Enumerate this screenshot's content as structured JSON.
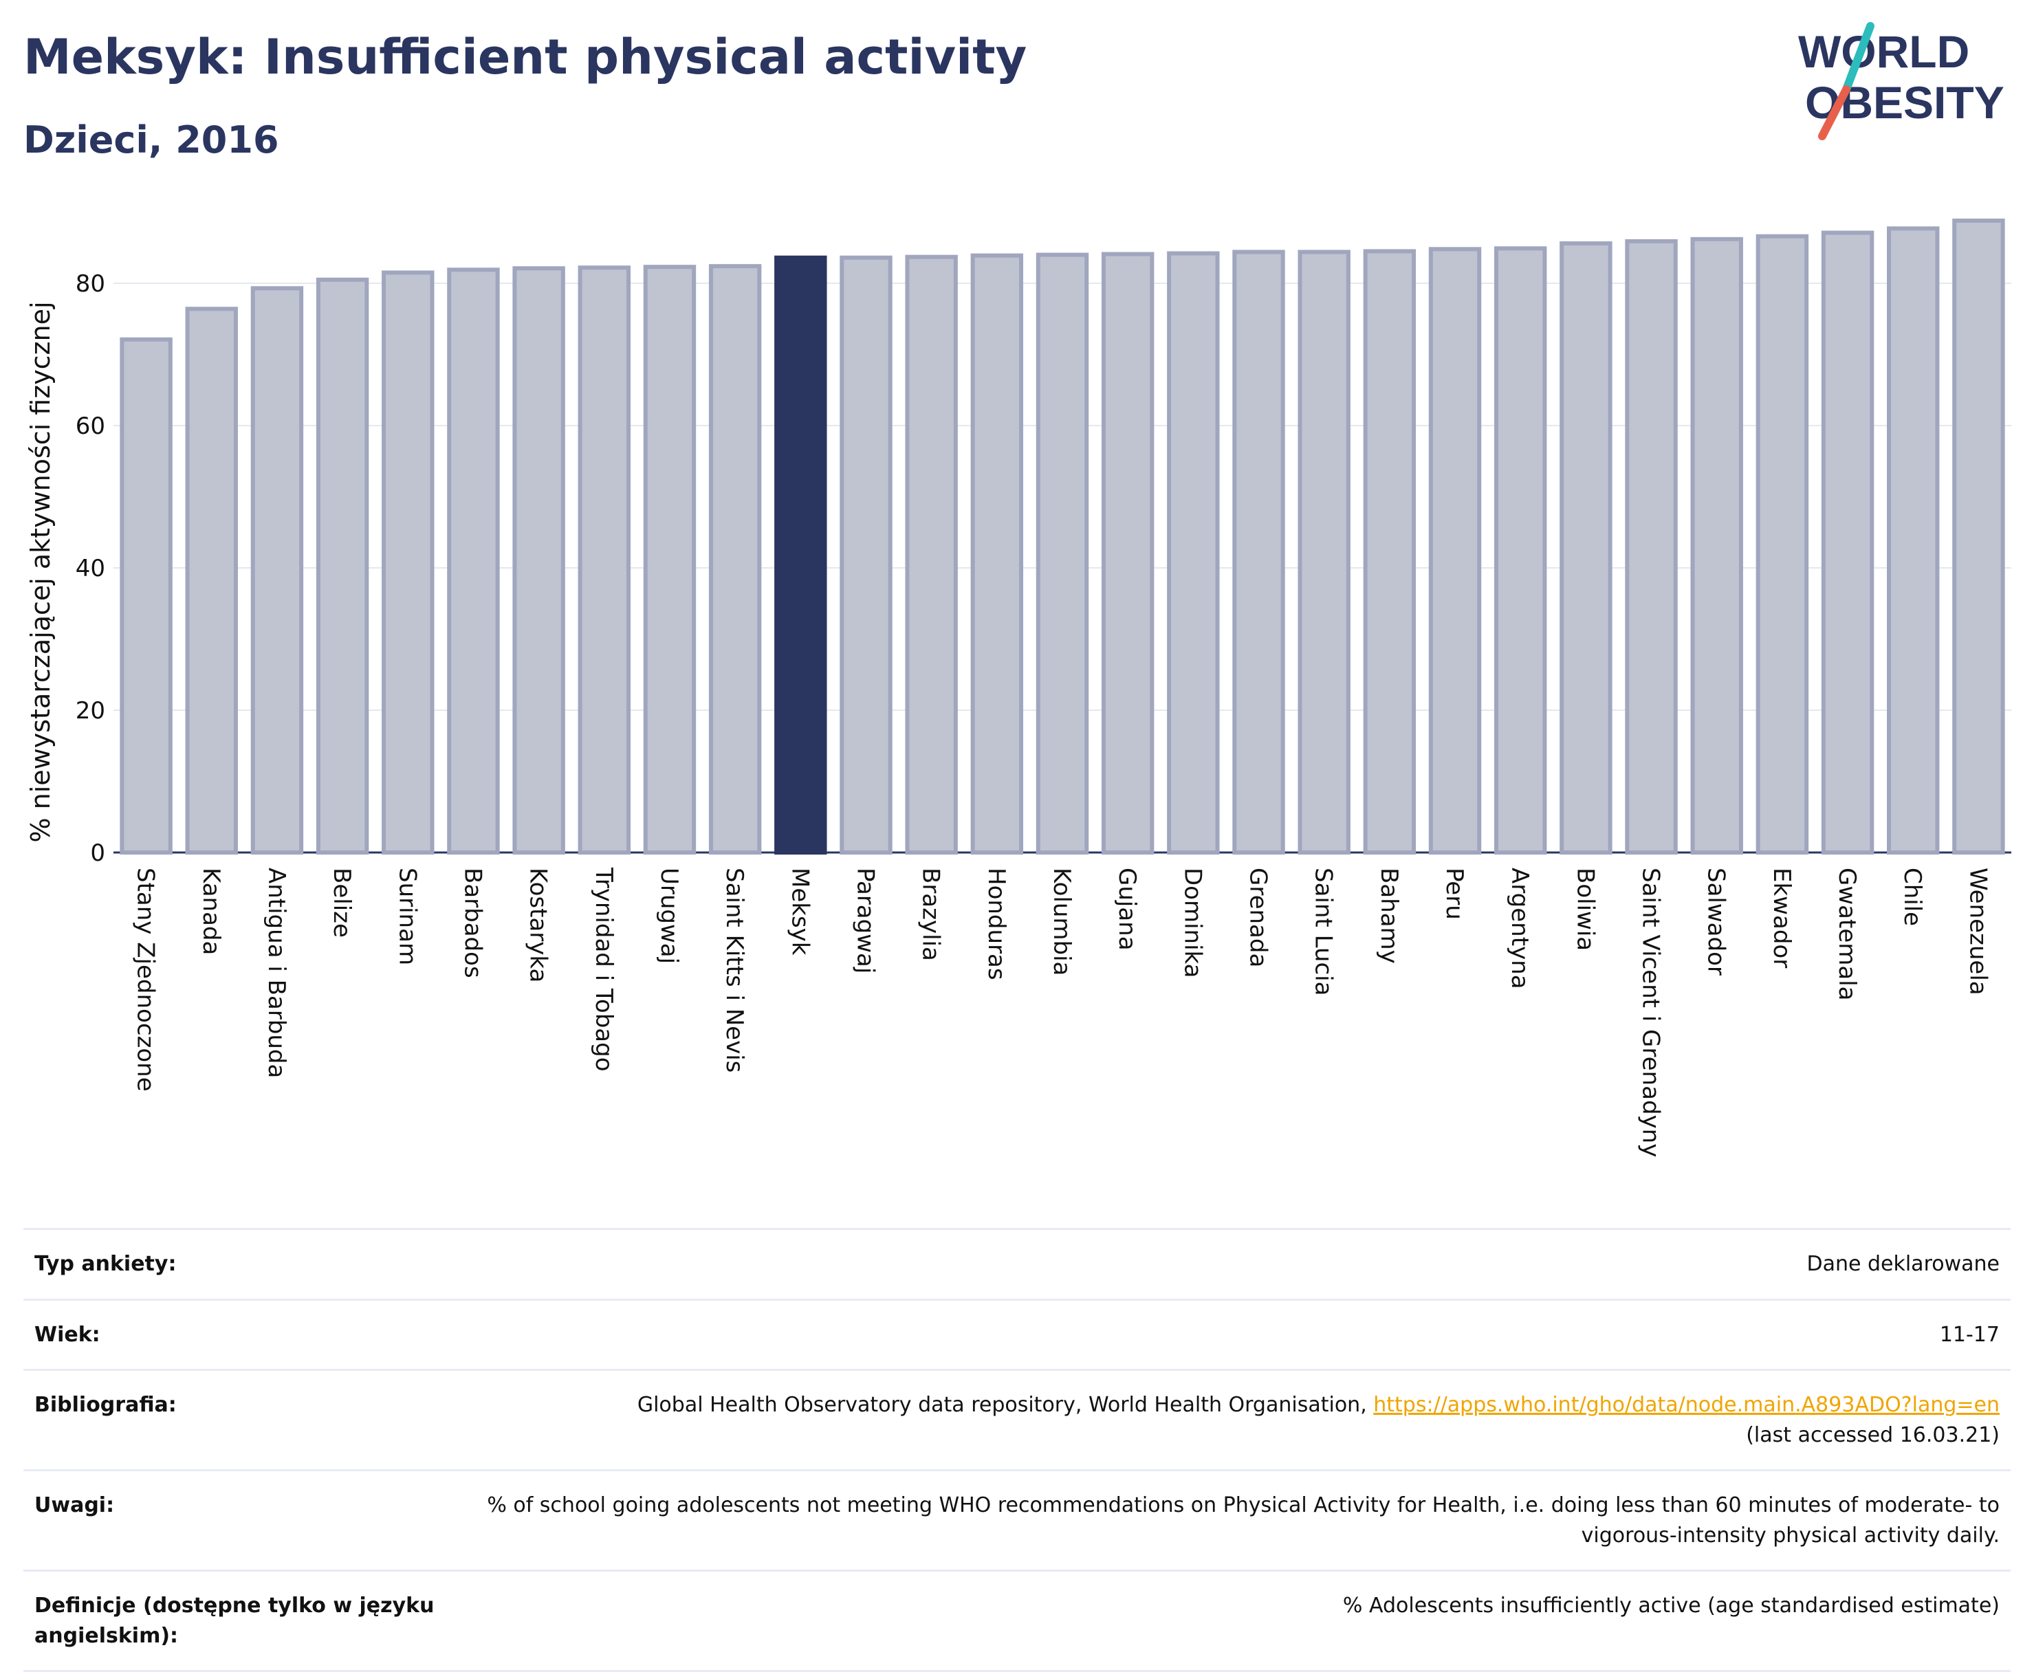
{
  "header": {
    "title": "Meksyk: Insufficient physical activity",
    "subtitle": "Dzieci, 2016"
  },
  "logo": {
    "line1": "WORLD",
    "line2": "OBESITY"
  },
  "colors": {
    "highlight": "#2a3560",
    "bar_fill": "#c0c3d0",
    "bar_stroke": "#a0a6be",
    "logo_slash_top": "#2cbcbc",
    "logo_slash_bottom": "#e8604c",
    "link": "#f0a500"
  },
  "chart_data": {
    "type": "bar",
    "ylabel": "% niewystarczającej aktywności fizycznej",
    "ylim": [
      0,
      90
    ],
    "yticks": [
      0,
      20,
      40,
      60,
      80
    ],
    "grid": true,
    "highlight": "Meksyk",
    "categories": [
      "Stany Zjednoczone",
      "Kanada",
      "Antigua i Barbuda",
      "Belize",
      "Surinam",
      "Barbados",
      "Kostaryka",
      "Trynidad i Tobago",
      "Urugwaj",
      "Saint Kitts i Nevis",
      "Meksyk",
      "Paragwaj",
      "Brazylia",
      "Honduras",
      "Kolumbia",
      "Gujana",
      "Dominika",
      "Grenada",
      "Saint Lucia",
      "Bahamy",
      "Peru",
      "Argentyna",
      "Boliwia",
      "Saint Vicent i Grenadyny",
      "Salwador",
      "Ekwador",
      "Gwatemala",
      "Chile",
      "Wenezuela"
    ],
    "values": [
      72.1,
      76.4,
      79.3,
      80.5,
      81.5,
      81.9,
      82.1,
      82.2,
      82.3,
      82.4,
      83.6,
      83.6,
      83.7,
      83.9,
      84.0,
      84.1,
      84.2,
      84.4,
      84.4,
      84.5,
      84.8,
      84.9,
      85.6,
      85.9,
      86.2,
      86.6,
      87.1,
      87.7,
      88.8
    ]
  },
  "info": [
    {
      "label": "Typ ankiety:",
      "value": "Dane deklarowane"
    },
    {
      "label": "Wiek:",
      "value": "11-17"
    },
    {
      "label": "Bibliografia:",
      "value": "Global Health Observatory data repository, World Health Organisation, ",
      "link": "https://apps.who.int/gho/data/node.main.A893ADO?lang=en",
      "value2": "(last accessed 16.03.21)"
    },
    {
      "label": "Uwagi:",
      "value": "% of school going adolescents not meeting WHO recommendations on Physical Activity for Health, i.e. doing less than 60 minutes of moderate- to vigorous-intensity physical activity daily."
    },
    {
      "label": "Definicje (dostępne tylko w języku angielskim):",
      "value": "% Adolescents insufficiently active (age standardised estimate)"
    }
  ]
}
